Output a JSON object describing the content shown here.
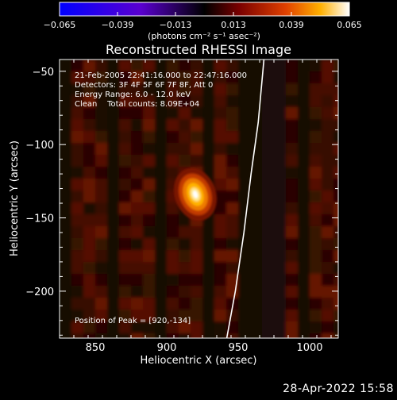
{
  "chart_data": {
    "type": "heatmap",
    "title": "Reconstructed RHESSI Image",
    "xlabel": "Heliocentric X (arcsec)",
    "ylabel": "Heliocentric Y (arcsec)",
    "xlim": [
      825,
      1020
    ],
    "ylim": [
      -232,
      -42
    ],
    "xticks": [
      850,
      900,
      950,
      1000
    ],
    "yticks": [
      -50,
      -100,
      -150,
      -200
    ],
    "xtick_labels": [
      "850",
      "900",
      "950",
      "1000"
    ],
    "ytick_labels": [
      "−50",
      "−100",
      "−150",
      "−200"
    ],
    "colorbar": {
      "min": -0.065,
      "max": 0.065,
      "tick_values": [
        -0.065,
        -0.039,
        -0.013,
        0.013,
        0.039,
        0.065
      ],
      "tick_labels": [
        "−0.065",
        "−0.039",
        "−0.013",
        "0.013",
        "0.039",
        "0.065"
      ],
      "label": "(photons cm⁻² s⁻¹ asec⁻²)"
    },
    "annotations": [
      "21-Feb-2005 22:41:16.000 to 22:47:16.000",
      "Detectors: 3F 4F 5F 6F 7F 8F, Att 0",
      "Energy Range: 6.0 - 12.0 keV",
      "Clean    Total counts: 8.09E+04"
    ],
    "peak_label": "Position of Peak = [920,-134]",
    "peak": {
      "x": 920,
      "y": -134
    },
    "limb_points": [
      [
        942,
        -232
      ],
      [
        948,
        -200
      ],
      [
        954,
        -160
      ],
      [
        959,
        -120
      ],
      [
        964,
        -85
      ],
      [
        968,
        -42
      ]
    ],
    "colors": {
      "background": "#000000",
      "limb": "#ffffff",
      "text": "#ffffff"
    }
  },
  "footer_timestamp": "28-Apr-2022 15:58"
}
